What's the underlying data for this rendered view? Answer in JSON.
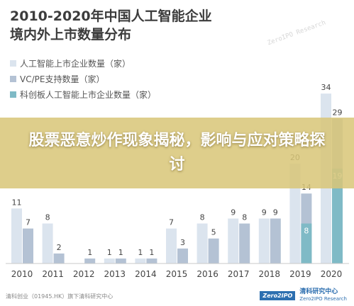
{
  "title": "2010-2020年中国人工智能企业境内外上市数量分布",
  "watermark": "ZeroIPO Research",
  "banner": "股票恶意炒作现象揭秘，影响与应对策略探讨",
  "footer": {
    "left": "清科创业（01945.HK）旗下清科研究中心",
    "logo": "Zero2IPO",
    "brand": "清科研究中心",
    "brand_sub": "Zero2IPO Research"
  },
  "colors": {
    "series1": "#dbe4ee",
    "series2": "#b4c2d4",
    "series3": "#7fbac6",
    "axis": "#c8c8c8"
  },
  "chart_data": {
    "type": "bar",
    "title": "2010-2020年中国人工智能企业境内外上市数量分布",
    "categories": [
      "2010",
      "2011",
      "2012",
      "2013",
      "2014",
      "2015",
      "2016",
      "2017",
      "2018",
      "2019",
      "2020"
    ],
    "series": [
      {
        "name": "人工智能上市企业数量（家）",
        "values": [
          11,
          8,
          null,
          1,
          1,
          7,
          8,
          9,
          9,
          20,
          34
        ]
      },
      {
        "name": "VC/PE支持数量（家）",
        "values": [
          7,
          2,
          1,
          1,
          1,
          3,
          5,
          8,
          9,
          14,
          29
        ]
      },
      {
        "name": "科创板人工智能上市企业数量（家）",
        "values": [
          null,
          null,
          null,
          null,
          null,
          null,
          null,
          null,
          null,
          8,
          19
        ]
      }
    ],
    "stacked_note": "series3 is drawn overlapping the lower part of series2",
    "ylim": [
      0,
      36
    ],
    "legend": "top-left",
    "grid": false
  }
}
